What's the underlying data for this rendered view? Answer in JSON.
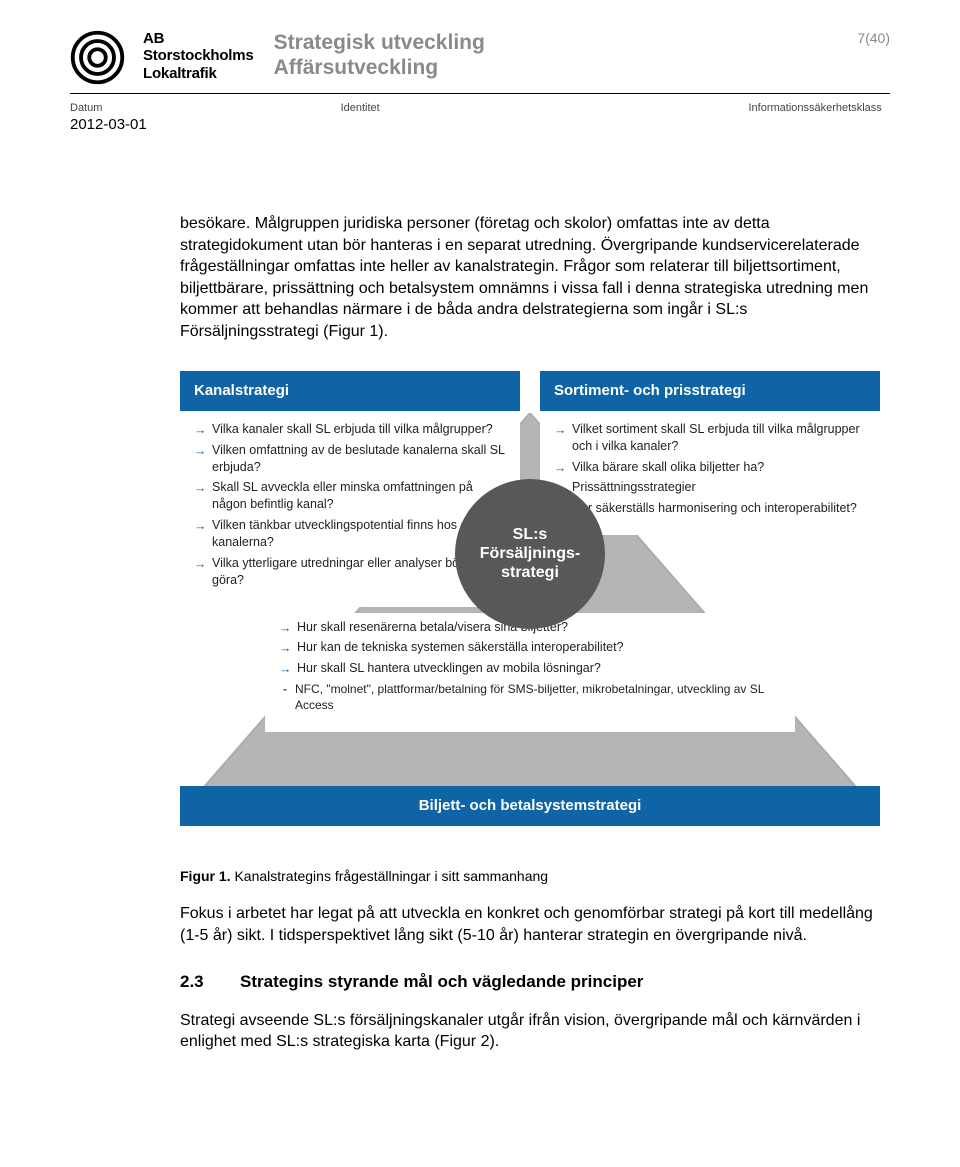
{
  "colors": {
    "panel_head_bg": "#0f64a5",
    "panel_head_text": "#ffffff",
    "arrow": "#0f64a5",
    "circle_bg": "#58585a",
    "circle_text": "#ffffff",
    "triangle_fill": "#7a7a7c",
    "triangle_stroke": "#6a6a6c",
    "header_grey": "#8a8a8a"
  },
  "header": {
    "org_line1": "AB",
    "org_line2": "Storstockholms",
    "org_line3": "Lokaltrafik",
    "doc_title1": "Strategisk utveckling",
    "doc_title2": "Affärsutveckling",
    "page_num": "7(40)"
  },
  "meta": {
    "date_label": "Datum",
    "date_value": "2012-03-01",
    "identity_label": "Identitet",
    "identity_value": "",
    "class_label": "Informationssäkerhetsklass",
    "class_value": ""
  },
  "paragraphs": {
    "p1": "besökare. Målgruppen juridiska personer (företag och skolor) omfattas inte av detta strategidokument utan bör hanteras i en separat utredning. Övergripande kundservicerelaterade frågeställningar omfattas inte heller av kanalstrategin. Frågor som relaterar till biljettsortiment, biljettbärare, prissättning och betalsystem omnämns i vissa fall i denna strategiska utredning men kommer att behandlas närmare i de båda andra delstrategierna som ingår i SL:s Försäljningsstrategi (Figur 1).",
    "p2": "Fokus i arbetet har legat på att utveckla en konkret och genomförbar strategi på kort till medellång (1-5 år) sikt. I tidsperspektivet lång sikt (5-10 år) hanterar strategin en övergripande nivå.",
    "p3": "Strategi avseende SL:s försäljningskanaler utgår ifrån vision, övergripande mål och kärnvärden i enlighet med SL:s strategiska karta (Figur 2)."
  },
  "figure": {
    "circle_label": "SL:s\nFörsäljnings-\nstrategi",
    "left": {
      "title": "Kanalstrategi",
      "items": [
        "Vilka kanaler skall SL erbjuda till vilka målgrupper?",
        "Vilken omfattning av de beslutade kanalerna skall SL erbjuda?",
        "Skall SL avveckla eller minska omfattningen på någon befintlig kanal?",
        "Vilken tänkbar utvecklingspotential finns hos de olika kanalerna?",
        "Vilka ytterligare utredningar eller analyser bör SL göra?"
      ]
    },
    "right": {
      "title": "Sortiment- och prisstrategi",
      "items": [
        "Vilket sortiment skall SL erbjuda till vilka målgrupper och i vilka kanaler?",
        "Vilka bärare skall olika biljetter ha?",
        "Prissättningsstrategier",
        "Hur säkerställs harmonisering och interoperabilitet?"
      ]
    },
    "mid": {
      "items": [
        "Hur skall resenärerna betala/visera sina biljetter?",
        "Hur kan de tekniska systemen säkerställa interoperabilitet?",
        "Hur skall SL hantera utvecklingen av mobila lösningar?"
      ],
      "sub": "NFC, \"molnet\", plattformar/betalning för SMS-biljetter, mikrobetalningar, utveckling av SL Access"
    },
    "bottom": {
      "title": "Biljett- och betalsystemstrategi"
    },
    "caption_bold": "Figur 1.",
    "caption_rest": " Kanalstrategins frågeställningar i sitt sammanhang"
  },
  "section": {
    "num": "2.3",
    "title": "Strategins styrande mål och vägledande principer"
  }
}
